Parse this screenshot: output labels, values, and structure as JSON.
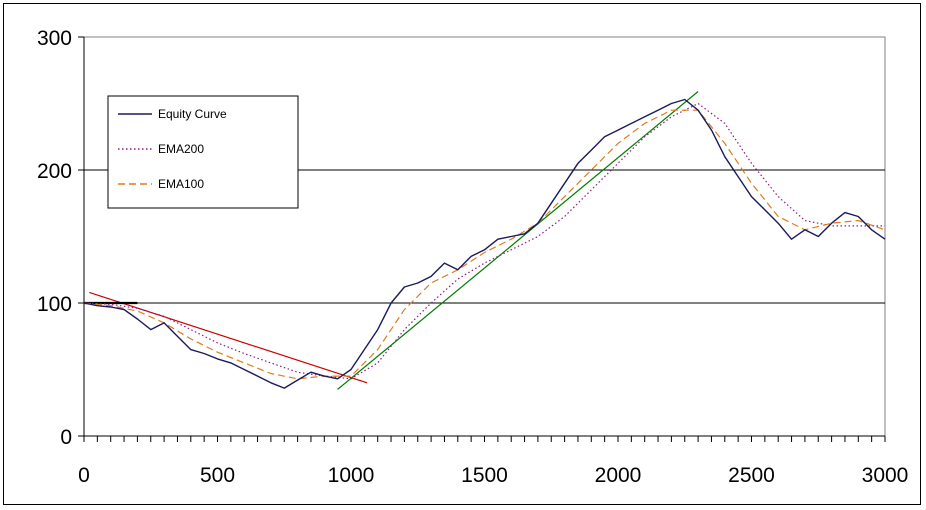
{
  "chart_data": {
    "type": "line",
    "title": "",
    "xlabel": "",
    "ylabel": "",
    "xlim": [
      0,
      3000
    ],
    "ylim": [
      0,
      300
    ],
    "x_ticks": [
      0,
      500,
      1000,
      1500,
      2000,
      2500,
      3000
    ],
    "x_tick_labels": [
      "0",
      "500",
      "1000",
      "1500",
      "2000",
      "2500",
      "3000"
    ],
    "y_ticks": [
      0,
      100,
      200,
      300
    ],
    "y_tick_labels": [
      "0",
      "100",
      "200",
      "300"
    ],
    "minor_x_step": 50,
    "grid": {
      "horizontal": [
        100,
        200
      ],
      "vertical": false
    },
    "legend": {
      "placement": "top-left",
      "entries": [
        {
          "label": "Equity Curve",
          "color": "#1a1a5e",
          "style": "solid"
        },
        {
          "label": "EMA200",
          "color": "#8b1a8b",
          "style": "dotted"
        },
        {
          "label": "EMA100",
          "color": "#e07b1a",
          "style": "dashed"
        }
      ]
    },
    "series": [
      {
        "name": "Equity Curve",
        "color": "#1a1a5e",
        "style": "solid",
        "x": [
          0,
          50,
          100,
          150,
          200,
          250,
          300,
          350,
          400,
          450,
          500,
          550,
          600,
          650,
          700,
          750,
          800,
          850,
          900,
          950,
          1000,
          1050,
          1100,
          1150,
          1200,
          1250,
          1300,
          1350,
          1400,
          1450,
          1500,
          1550,
          1600,
          1650,
          1700,
          1750,
          1800,
          1850,
          1900,
          1950,
          2000,
          2050,
          2100,
          2150,
          2200,
          2250,
          2300,
          2350,
          2400,
          2450,
          2500,
          2550,
          2600,
          2650,
          2700,
          2750,
          2800,
          2850,
          2900,
          2950,
          3000
        ],
        "y": [
          100,
          98,
          97,
          95,
          88,
          80,
          85,
          75,
          65,
          62,
          58,
          55,
          50,
          45,
          40,
          36,
          42,
          48,
          45,
          43,
          50,
          65,
          80,
          100,
          112,
          115,
          120,
          130,
          125,
          135,
          140,
          148,
          150,
          152,
          160,
          175,
          190,
          205,
          215,
          225,
          230,
          235,
          240,
          245,
          250,
          253,
          245,
          230,
          210,
          195,
          180,
          170,
          160,
          148,
          155,
          150,
          160,
          168,
          165,
          155,
          148
        ]
      },
      {
        "name": "EMA200",
        "color": "#8b1a8b",
        "style": "dotted",
        "x": [
          0,
          100,
          200,
          300,
          400,
          500,
          600,
          700,
          800,
          900,
          1000,
          1100,
          1200,
          1300,
          1400,
          1500,
          1600,
          1700,
          1800,
          1900,
          2000,
          2100,
          2200,
          2300,
          2400,
          2500,
          2600,
          2700,
          2800,
          2900,
          3000
        ],
        "y": [
          100,
          99,
          96,
          90,
          80,
          70,
          62,
          55,
          48,
          45,
          43,
          55,
          80,
          100,
          118,
          130,
          140,
          150,
          165,
          185,
          205,
          225,
          240,
          250,
          235,
          205,
          180,
          162,
          158,
          158,
          158
        ]
      },
      {
        "name": "EMA100",
        "color": "#e07b1a",
        "style": "dashed",
        "x": [
          0,
          100,
          200,
          300,
          400,
          500,
          600,
          700,
          800,
          900,
          1000,
          1100,
          1200,
          1300,
          1400,
          1500,
          1600,
          1700,
          1800,
          1900,
          2000,
          2100,
          2200,
          2300,
          2400,
          2500,
          2600,
          2700,
          2800,
          2900,
          3000
        ],
        "y": [
          100,
          98,
          94,
          85,
          73,
          63,
          55,
          47,
          43,
          45,
          45,
          65,
          95,
          115,
          125,
          138,
          148,
          160,
          180,
          200,
          220,
          235,
          245,
          245,
          220,
          190,
          165,
          155,
          160,
          162,
          155
        ]
      },
      {
        "name": "",
        "color": "#cc0000",
        "style": "solid",
        "x": [
          20,
          1060
        ],
        "y": [
          108,
          40
        ]
      },
      {
        "name": "",
        "color": "#008000",
        "style": "solid",
        "x": [
          950,
          2300
        ],
        "y": [
          35,
          259
        ]
      },
      {
        "name": "",
        "color": "#000000",
        "style": "solid",
        "x": [
          0,
          200
        ],
        "y": [
          100,
          100
        ]
      }
    ]
  }
}
